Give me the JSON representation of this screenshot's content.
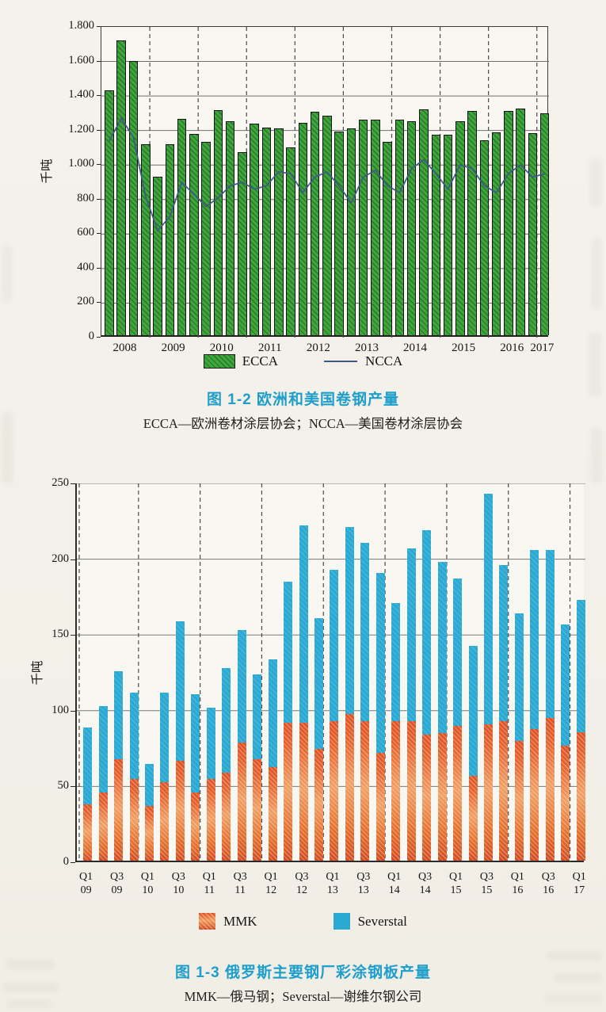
{
  "figure_1_2": {
    "caption": "图 1-2  欧洲和美国卷钢产量",
    "subcaption": "ECCA—欧洲卷材涂层协会；NCCA—美国卷材涂层协会",
    "ylabel": "千吨",
    "legend": {
      "ecca": "ECCA",
      "ncca": "NCCA"
    }
  },
  "figure_1_3": {
    "caption": "图 1-3  俄罗斯主要钢厂彩涂钢板产量",
    "subcaption": "MMK—俄马钢；Severstal—谢维尔钢公司",
    "ylabel": "千吨",
    "legend": {
      "mmk": "MMK",
      "severstal": "Severstal"
    }
  },
  "chart_data": [
    {
      "type": "bar",
      "title": "图 1-2 欧洲和美国卷钢产量",
      "xlabel": "",
      "ylabel": "千吨",
      "ylim": [
        0,
        1800
      ],
      "ytick_step": 200,
      "ytick_labels": [
        "0",
        "200",
        "400",
        "600",
        "800",
        "1.000",
        "1.200",
        "1.400",
        "1.600",
        "1.800"
      ],
      "xtick_labels": [
        "2008",
        "2009",
        "2010",
        "2011",
        "2012",
        "2013",
        "2014",
        "2015",
        "2016",
        "2017"
      ],
      "quarters_per_year": [
        4,
        4,
        4,
        4,
        4,
        4,
        4,
        4,
        4,
        1
      ],
      "grid": "horizontal solid, dashed vertical year dividers",
      "legend_position": "bottom",
      "series": [
        {
          "name": "ECCA",
          "type": "bar",
          "color": "#3fa53c",
          "values": [
            1420,
            1710,
            1590,
            1105,
            920,
            1105,
            1255,
            1165,
            1120,
            1305,
            1240,
            1060,
            1225,
            1205,
            1200,
            1090,
            1230,
            1295,
            1270,
            1180,
            1200,
            1250,
            1250,
            1120,
            1250,
            1240,
            1310,
            1160,
            1160,
            1240,
            1300,
            1130,
            1175,
            1300,
            1315,
            1170,
            1285
          ]
        },
        {
          "name": "NCCA",
          "type": "line",
          "color": "#3b5a88",
          "values": [
            1140,
            1270,
            1160,
            820,
            620,
            700,
            900,
            830,
            760,
            810,
            880,
            900,
            860,
            880,
            960,
            950,
            840,
            930,
            960,
            880,
            780,
            930,
            970,
            880,
            840,
            980,
            1030,
            950,
            860,
            1000,
            980,
            880,
            840,
            950,
            1000,
            930,
            950
          ]
        }
      ]
    },
    {
      "type": "bar",
      "subtype": "stacked",
      "title": "图 1-3 俄罗斯主要钢厂彩涂钢板产量",
      "xlabel": "",
      "ylabel": "千吨",
      "ylim": [
        0,
        250
      ],
      "ytick_step": 50,
      "ytick_labels": [
        "0",
        "50",
        "100",
        "150",
        "200",
        "250"
      ],
      "xtick_labels": [
        "Q1 09",
        "Q3 09",
        "Q1 10",
        "Q3 10",
        "Q1 11",
        "Q3 11",
        "Q1 12",
        "Q3 12",
        "Q1 13",
        "Q3 13",
        "Q1 14",
        "Q3 14",
        "Q1 15",
        "Q3 15",
        "Q1 16",
        "Q3 16",
        "Q1 17"
      ],
      "quarters_total": 33,
      "grid": "horizontal solid, dashed vertical year dividers",
      "legend_position": "bottom",
      "series": [
        {
          "name": "MMK",
          "color": "#dd5226",
          "values": [
            37,
            45,
            67,
            54,
            36,
            52,
            66,
            45,
            54,
            58,
            78,
            67,
            62,
            91,
            91,
            74,
            92,
            97,
            92,
            71,
            92,
            92,
            83,
            84,
            89,
            56,
            90,
            92,
            79,
            87,
            94,
            76,
            85
          ]
        },
        {
          "name": "Severstal",
          "color": "#2aa9d3",
          "values": [
            51,
            57,
            58,
            57,
            28,
            59,
            92,
            65,
            47,
            69,
            74,
            56,
            71,
            93,
            130,
            86,
            100,
            123,
            118,
            119,
            78,
            114,
            135,
            113,
            97,
            86,
            152,
            103,
            84,
            118,
            111,
            80,
            87
          ]
        }
      ]
    }
  ]
}
